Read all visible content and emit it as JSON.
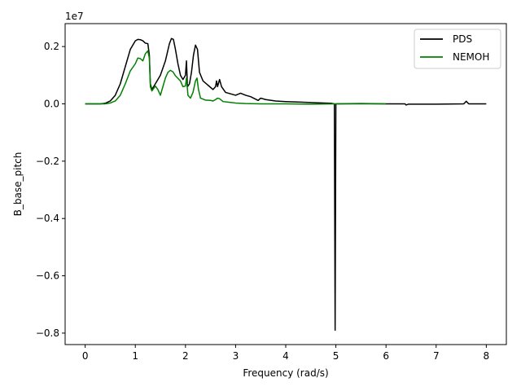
{
  "chart_data": {
    "type": "line",
    "title": "",
    "xlabel": "Frequency (rad/s)",
    "ylabel": "B_base_pitch",
    "offset_label": "1e7",
    "xlim": [
      -0.4,
      8.4
    ],
    "ylim": [
      -0.84,
      0.28
    ],
    "xticks": [
      0,
      1,
      2,
      3,
      4,
      5,
      6,
      7,
      8
    ],
    "xtick_labels": [
      "0",
      "1",
      "2",
      "3",
      "4",
      "5",
      "6",
      "7",
      "8"
    ],
    "yticks": [
      -0.8,
      -0.6,
      -0.4,
      -0.2,
      0.0,
      0.2
    ],
    "ytick_labels": [
      "−0.8",
      "−0.6",
      "−0.4",
      "−0.2",
      "0.0",
      "0.2"
    ],
    "grid": false,
    "legend_position": "top-right",
    "series": [
      {
        "name": "PDS",
        "color": "#000000",
        "points": [
          [
            0.0,
            0.0
          ],
          [
            0.3,
            0.0
          ],
          [
            0.4,
            0.002
          ],
          [
            0.5,
            0.01
          ],
          [
            0.6,
            0.03
          ],
          [
            0.7,
            0.07
          ],
          [
            0.8,
            0.13
          ],
          [
            0.9,
            0.19
          ],
          [
            1.0,
            0.22
          ],
          [
            1.05,
            0.225
          ],
          [
            1.1,
            0.224
          ],
          [
            1.15,
            0.22
          ],
          [
            1.2,
            0.212
          ],
          [
            1.25,
            0.21
          ],
          [
            1.28,
            0.17
          ],
          [
            1.3,
            0.07
          ],
          [
            1.33,
            0.05
          ],
          [
            1.4,
            0.07
          ],
          [
            1.5,
            0.1
          ],
          [
            1.6,
            0.15
          ],
          [
            1.68,
            0.21
          ],
          [
            1.72,
            0.228
          ],
          [
            1.76,
            0.225
          ],
          [
            1.8,
            0.19
          ],
          [
            1.85,
            0.14
          ],
          [
            1.9,
            0.1
          ],
          [
            1.95,
            0.085
          ],
          [
            2.0,
            0.1
          ],
          [
            2.02,
            0.15
          ],
          [
            2.04,
            0.06
          ],
          [
            2.08,
            0.07
          ],
          [
            2.12,
            0.11
          ],
          [
            2.16,
            0.17
          ],
          [
            2.2,
            0.205
          ],
          [
            2.24,
            0.19
          ],
          [
            2.28,
            0.11
          ],
          [
            2.35,
            0.08
          ],
          [
            2.45,
            0.065
          ],
          [
            2.55,
            0.05
          ],
          [
            2.6,
            0.06
          ],
          [
            2.62,
            0.08
          ],
          [
            2.64,
            0.06
          ],
          [
            2.68,
            0.085
          ],
          [
            2.72,
            0.06
          ],
          [
            2.8,
            0.04
          ],
          [
            2.9,
            0.035
          ],
          [
            3.0,
            0.03
          ],
          [
            3.1,
            0.037
          ],
          [
            3.2,
            0.03
          ],
          [
            3.3,
            0.025
          ],
          [
            3.45,
            0.012
          ],
          [
            3.5,
            0.02
          ],
          [
            3.6,
            0.015
          ],
          [
            3.8,
            0.01
          ],
          [
            4.0,
            0.008
          ],
          [
            4.3,
            0.006
          ],
          [
            4.6,
            0.004
          ],
          [
            4.9,
            0.002
          ],
          [
            4.97,
            0.0
          ],
          [
            4.985,
            -0.79
          ],
          [
            5.0,
            0.0
          ],
          [
            5.5,
            0.001
          ],
          [
            6.0,
            0.0
          ],
          [
            6.38,
            0.0
          ],
          [
            6.4,
            -0.004
          ],
          [
            6.45,
            -0.001
          ],
          [
            7.0,
            -0.001
          ],
          [
            7.55,
            0.0
          ],
          [
            7.6,
            0.009
          ],
          [
            7.65,
            0.0
          ],
          [
            8.0,
            0.0
          ]
        ]
      },
      {
        "name": "NEMOH",
        "color": "#008000",
        "points": [
          [
            0.0,
            0.0
          ],
          [
            0.4,
            0.0
          ],
          [
            0.5,
            0.003
          ],
          [
            0.6,
            0.01
          ],
          [
            0.7,
            0.03
          ],
          [
            0.8,
            0.07
          ],
          [
            0.9,
            0.115
          ],
          [
            1.0,
            0.14
          ],
          [
            1.05,
            0.16
          ],
          [
            1.1,
            0.158
          ],
          [
            1.15,
            0.15
          ],
          [
            1.2,
            0.175
          ],
          [
            1.25,
            0.185
          ],
          [
            1.28,
            0.16
          ],
          [
            1.3,
            0.06
          ],
          [
            1.33,
            0.045
          ],
          [
            1.4,
            0.062
          ],
          [
            1.45,
            0.05
          ],
          [
            1.5,
            0.03
          ],
          [
            1.55,
            0.06
          ],
          [
            1.6,
            0.09
          ],
          [
            1.65,
            0.11
          ],
          [
            1.7,
            0.117
          ],
          [
            1.75,
            0.112
          ],
          [
            1.8,
            0.098
          ],
          [
            1.9,
            0.08
          ],
          [
            1.95,
            0.06
          ],
          [
            2.0,
            0.062
          ],
          [
            2.02,
            0.09
          ],
          [
            2.05,
            0.03
          ],
          [
            2.1,
            0.02
          ],
          [
            2.15,
            0.04
          ],
          [
            2.2,
            0.08
          ],
          [
            2.23,
            0.09
          ],
          [
            2.26,
            0.05
          ],
          [
            2.3,
            0.02
          ],
          [
            2.4,
            0.013
          ],
          [
            2.5,
            0.012
          ],
          [
            2.55,
            0.01
          ],
          [
            2.6,
            0.015
          ],
          [
            2.64,
            0.02
          ],
          [
            2.68,
            0.018
          ],
          [
            2.75,
            0.008
          ],
          [
            2.9,
            0.005
          ],
          [
            3.0,
            0.003
          ],
          [
            3.2,
            0.001
          ],
          [
            3.5,
            0.0
          ],
          [
            4.0,
            0.0
          ],
          [
            4.5,
            -0.001
          ],
          [
            5.0,
            0.0
          ],
          [
            6.0,
            0.0
          ]
        ]
      }
    ]
  }
}
